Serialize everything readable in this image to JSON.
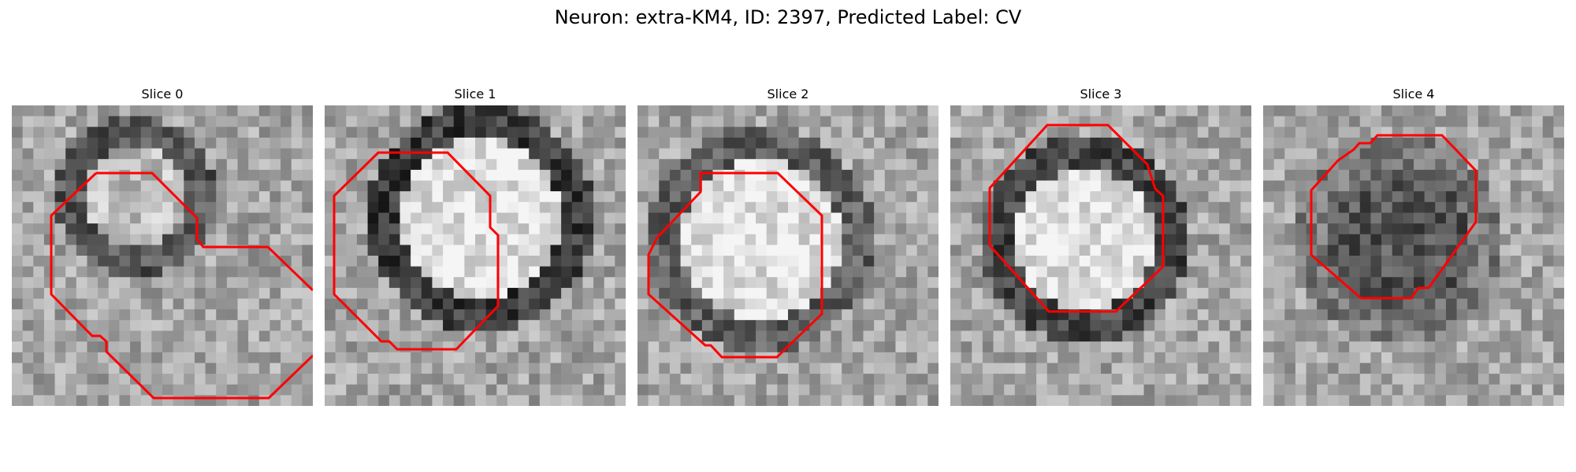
{
  "figure": {
    "title": "Neuron: extra-KM4, ID: 2397, Predicted Label: CV"
  },
  "colors": {
    "contour": "#ff0000",
    "background": "#ffffff"
  },
  "panels": [
    {
      "title": "Slice 0"
    },
    {
      "title": "Slice 1"
    },
    {
      "title": "Slice 2"
    },
    {
      "title": "Slice 3"
    },
    {
      "title": "Slice 4"
    }
  ]
}
